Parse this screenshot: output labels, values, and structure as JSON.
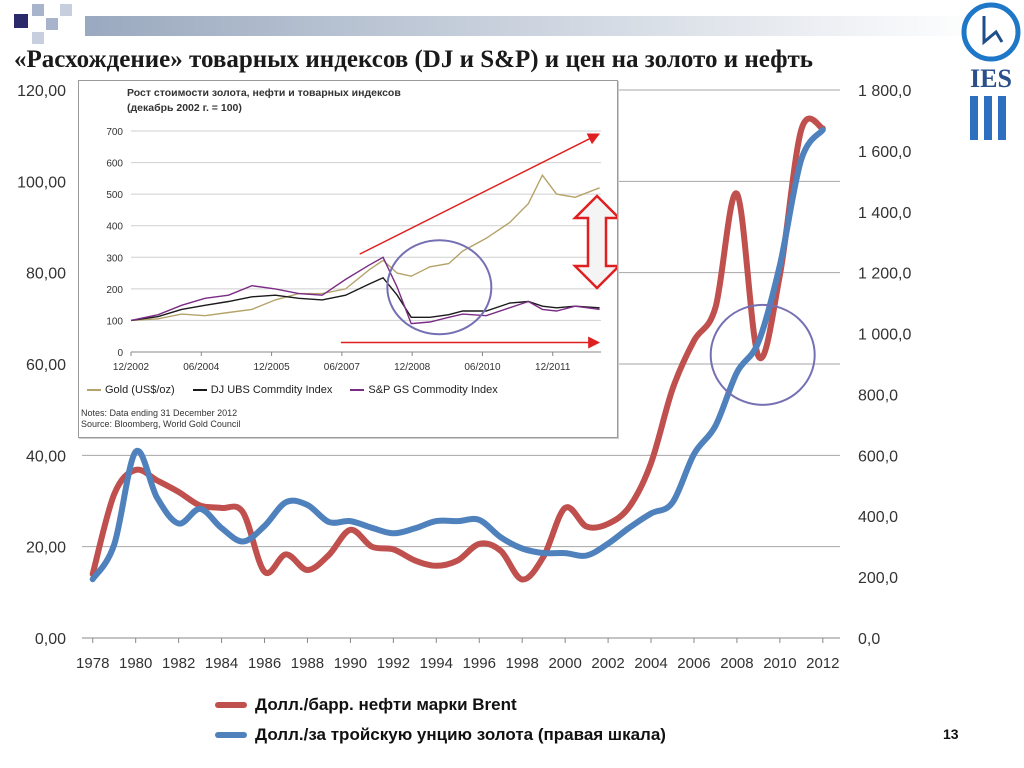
{
  "slide": {
    "title": "«Расхождение» товарных индексов (DJ и S&P) и цен на золото и нефть",
    "page_number": "13",
    "logo_text": "IES"
  },
  "colors": {
    "oil": "#c0504d",
    "gold": "#4f81bd",
    "inset_gold": "#b5a36a",
    "inset_dj": "#1a1a1a",
    "inset_sp": "#7b2c86",
    "annotation_red": "#e02020",
    "circle": "#7570b3"
  },
  "legend": {
    "oil_label": "Долл./барр. нефти марки Brent",
    "gold_label": "Долл./за тройскую унцию золота (правая шкала)"
  },
  "chart_data": [
    {
      "type": "line",
      "x": [
        1978,
        1979,
        1980,
        1981,
        1982,
        1983,
        1984,
        1985,
        1986,
        1987,
        1988,
        1989,
        1990,
        1991,
        1992,
        1993,
        1994,
        1995,
        1996,
        1997,
        1998,
        1999,
        2000,
        2001,
        2002,
        2003,
        2004,
        2005,
        2006,
        2007,
        2008,
        2009,
        2010,
        2011,
        2012
      ],
      "xticks": [
        "1978",
        "1980",
        "1982",
        "1984",
        "1986",
        "1988",
        "1990",
        "1992",
        "1994",
        "1996",
        "1998",
        "2000",
        "2002",
        "2004",
        "2006",
        "2008",
        "2010",
        "2012"
      ],
      "series": [
        {
          "name": "Долл./барр. нефти марки Brent",
          "axis": "left",
          "values": [
            14.0,
            31.5,
            36.8,
            34.5,
            32.0,
            29.0,
            28.5,
            27.5,
            14.5,
            18.3,
            14.9,
            18.2,
            23.7,
            20.0,
            19.4,
            17.0,
            15.8,
            17.0,
            20.6,
            19.1,
            12.8,
            17.9,
            28.5,
            24.4,
            25.0,
            28.8,
            38.3,
            54.5,
            65.1,
            72.4,
            97.3,
            61.7,
            79.5,
            111.3,
            111.6
          ]
        },
        {
          "name": "Долл.за тройскую унцию золота (правая шкала)",
          "axis": "right",
          "values": [
            193,
            307,
            612,
            460,
            376,
            424,
            361,
            317,
            368,
            446,
            437,
            381,
            384,
            362,
            344,
            360,
            384,
            384,
            388,
            331,
            294,
            279,
            279,
            271,
            310,
            363,
            409,
            445,
            604,
            697,
            872,
            972,
            1225,
            1572,
            1669
          ]
        }
      ],
      "yaxis_left": {
        "min": 0,
        "max": 120,
        "ticks": [
          "0,00",
          "20,00",
          "40,00",
          "60,00",
          "80,00",
          "100,00",
          "120,00"
        ]
      },
      "yaxis_right": {
        "min": 0,
        "max": 1800,
        "ticks": [
          "0,0",
          "200,0",
          "400,0",
          "600,0",
          "800,0",
          "1 000,0",
          "1 200,0",
          "1 400,0",
          "1 600,0",
          "1 800,0"
        ]
      },
      "grid": "horizontal",
      "legend_position": "bottom"
    },
    {
      "type": "line",
      "title": "Рост стоимости золота, нефти и товарных индексов",
      "subtitle": "(декабрь 2002 г. = 100)",
      "x": [
        2002.92,
        2003.5,
        2004.0,
        2004.5,
        2005.0,
        2005.5,
        2006.0,
        2006.5,
        2007.0,
        2007.5,
        2008.0,
        2008.3,
        2008.6,
        2008.9,
        2009.3,
        2009.7,
        2010.0,
        2010.5,
        2011.0,
        2011.4,
        2011.7,
        2012.0,
        2012.4,
        2012.92
      ],
      "xticks": [
        "12/2002",
        "06/2004",
        "12/2005",
        "06/2007",
        "12/2008",
        "06/2010",
        "12/2011"
      ],
      "series": [
        {
          "name": "Gold (US$/oz)",
          "values": [
            100,
            105,
            120,
            115,
            125,
            135,
            165,
            185,
            185,
            200,
            260,
            290,
            250,
            240,
            270,
            280,
            320,
            360,
            410,
            470,
            560,
            500,
            490,
            520
          ]
        },
        {
          "name": "DJ UBS Commdity Index",
          "values": [
            100,
            112,
            135,
            148,
            160,
            175,
            180,
            170,
            165,
            180,
            215,
            235,
            180,
            110,
            110,
            118,
            130,
            130,
            155,
            160,
            145,
            140,
            145,
            140
          ]
        },
        {
          "name": "S&P GS Commodity Index",
          "values": [
            100,
            118,
            148,
            170,
            180,
            210,
            200,
            185,
            180,
            230,
            275,
            300,
            205,
            90,
            95,
            110,
            120,
            115,
            140,
            160,
            135,
            130,
            145,
            135
          ]
        }
      ],
      "yaxis": {
        "min": 0,
        "max": 700,
        "ticks": [
          "0",
          "100",
          "200",
          "300",
          "400",
          "500",
          "600",
          "700"
        ]
      },
      "grid": "horizontal",
      "legend_position": "bottom",
      "notes": "Notes: Data ending 31 December 2012",
      "source": "Source: Bloomberg, World Gold Council"
    }
  ]
}
